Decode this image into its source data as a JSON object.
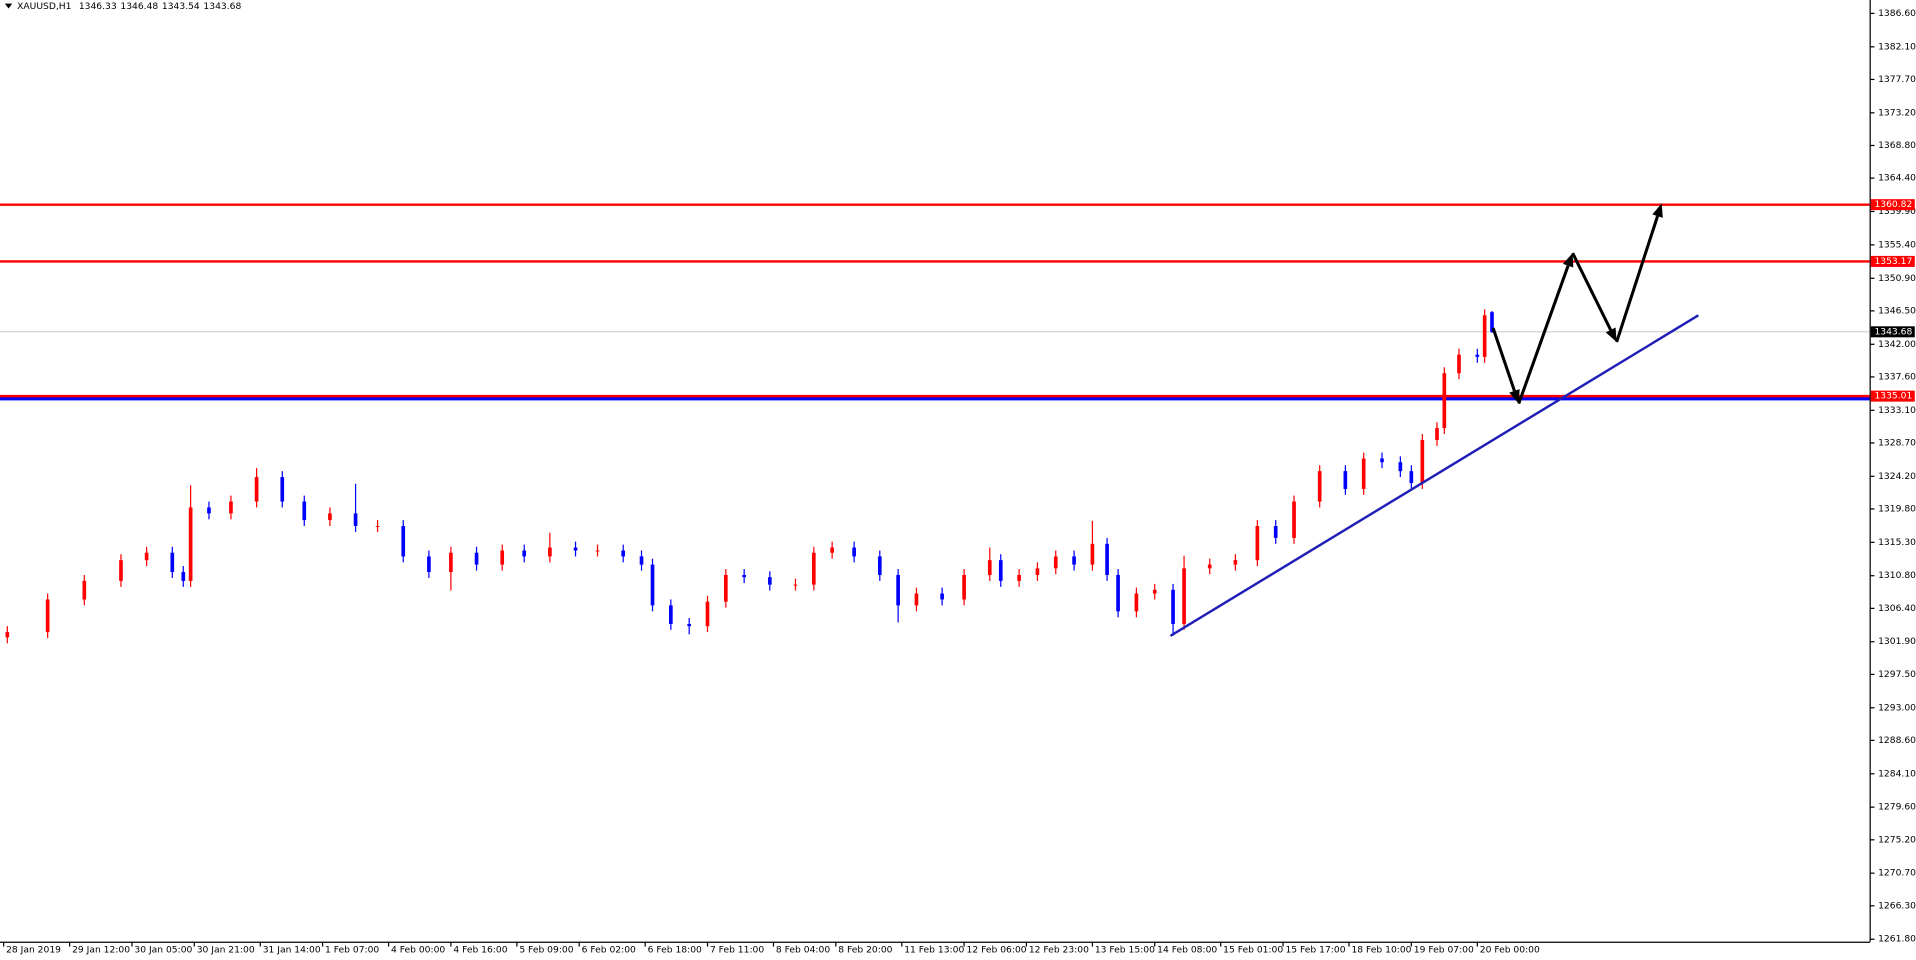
{
  "chart_data": {
    "type": "candlestick",
    "title": "XAUUSD,H1",
    "x": [
      2,
      13,
      23,
      33,
      40,
      47,
      50,
      52,
      57,
      63,
      70,
      77,
      83,
      90,
      97,
      103,
      110,
      117,
      123,
      130,
      137,
      143,
      150,
      157,
      163,
      170,
      175,
      178,
      183,
      188,
      193,
      198,
      203,
      210,
      217,
      222,
      227,
      233,
      240,
      245,
      250,
      257,
      263,
      270,
      273,
      278,
      283,
      288,
      293,
      298,
      302,
      305,
      310,
      315,
      320,
      323,
      330,
      337,
      343,
      348,
      353,
      360,
      367,
      372,
      377,
      382,
      385,
      388,
      392,
      394,
      398,
      403,
      405,
      407
    ],
    "open": [
      1302.5,
      1303.2,
      1307.6,
      1310.1,
      1312.9,
      1313.9,
      1311.3,
      1310.1,
      1320.0,
      1319.2,
      1320.8,
      1324.1,
      1320.8,
      1318.3,
      1319.2,
      1317.5,
      1317.5,
      1313.4,
      1311.3,
      1313.9,
      1312.3,
      1314.2,
      1313.4,
      1314.6,
      1314.2,
      1314.2,
      1313.4,
      1312.3,
      1306.8,
      1304.3,
      1304.0,
      1307.3,
      1310.9,
      1310.6,
      1309.6,
      1309.6,
      1313.9,
      1314.6,
      1313.4,
      1310.9,
      1306.8,
      1308.4,
      1307.6,
      1310.9,
      1312.9,
      1310.1,
      1310.9,
      1311.8,
      1313.4,
      1312.3,
      1315.1,
      1310.9,
      1306.0,
      1308.4,
      1308.9,
      1304.3,
      1311.8,
      1312.3,
      1312.9,
      1317.5,
      1315.9,
      1320.8,
      1324.9,
      1322.5,
      1326.6,
      1326.1,
      1324.9,
      1323.3,
      1329.1,
      1330.7,
      1338.1,
      1340.6,
      1340.3,
      1346.33
    ],
    "high": [
      1304.0,
      1308.4,
      1310.9,
      1313.7,
      1314.7,
      1314.7,
      1312.1,
      1323.0,
      1320.8,
      1321.6,
      1325.3,
      1324.9,
      1321.6,
      1320.0,
      1323.2,
      1318.3,
      1318.3,
      1314.2,
      1314.7,
      1314.7,
      1315.0,
      1315.0,
      1316.6,
      1315.4,
      1315.0,
      1315.0,
      1314.2,
      1313.1,
      1307.6,
      1305.1,
      1308.1,
      1311.7,
      1311.7,
      1311.4,
      1310.4,
      1314.7,
      1315.4,
      1315.4,
      1314.2,
      1311.7,
      1309.2,
      1309.2,
      1311.7,
      1314.6,
      1313.7,
      1311.7,
      1312.6,
      1314.2,
      1314.2,
      1318.2,
      1315.9,
      1311.7,
      1309.2,
      1309.7,
      1309.7,
      1313.5,
      1313.1,
      1313.7,
      1318.3,
      1318.3,
      1321.6,
      1325.7,
      1325.7,
      1327.4,
      1327.4,
      1326.9,
      1325.7,
      1329.9,
      1331.5,
      1338.9,
      1341.4,
      1341.4,
      1346.7,
      1346.48
    ],
    "low": [
      1301.7,
      1302.4,
      1306.8,
      1309.3,
      1312.1,
      1310.5,
      1309.3,
      1309.3,
      1318.4,
      1318.4,
      1320.0,
      1320.0,
      1317.5,
      1317.5,
      1316.7,
      1316.7,
      1312.6,
      1310.5,
      1308.8,
      1311.5,
      1311.5,
      1312.6,
      1312.6,
      1313.4,
      1313.4,
      1312.6,
      1311.5,
      1306.0,
      1303.5,
      1302.9,
      1303.2,
      1306.5,
      1309.8,
      1308.8,
      1308.8,
      1308.8,
      1313.1,
      1312.6,
      1310.1,
      1304.5,
      1306.0,
      1306.8,
      1306.8,
      1310.1,
      1309.3,
      1309.3,
      1310.1,
      1311.0,
      1311.5,
      1311.5,
      1310.1,
      1305.2,
      1305.2,
      1307.6,
      1302.7,
      1303.5,
      1311.0,
      1311.5,
      1312.1,
      1315.1,
      1315.1,
      1320.0,
      1321.7,
      1321.7,
      1325.3,
      1324.1,
      1322.5,
      1322.5,
      1328.3,
      1329.9,
      1337.3,
      1339.5,
      1339.5,
      1343.54
    ],
    "close": [
      1303.2,
      1307.6,
      1310.1,
      1312.9,
      1313.9,
      1311.3,
      1310.1,
      1320.0,
      1319.2,
      1320.8,
      1324.1,
      1320.8,
      1318.3,
      1319.2,
      1317.5,
      1317.5,
      1313.4,
      1311.3,
      1313.9,
      1312.3,
      1314.2,
      1313.4,
      1314.6,
      1314.2,
      1314.2,
      1313.4,
      1312.3,
      1306.8,
      1304.3,
      1304.0,
      1307.3,
      1310.9,
      1310.6,
      1309.6,
      1309.6,
      1313.9,
      1314.6,
      1313.4,
      1310.9,
      1306.8,
      1308.4,
      1307.6,
      1310.9,
      1312.9,
      1310.1,
      1310.9,
      1311.8,
      1313.4,
      1312.3,
      1315.1,
      1310.9,
      1306.0,
      1308.4,
      1308.9,
      1304.3,
      1311.8,
      1312.3,
      1312.9,
      1317.5,
      1315.9,
      1320.8,
      1324.9,
      1322.5,
      1326.6,
      1326.1,
      1324.9,
      1323.3,
      1329.1,
      1330.7,
      1338.1,
      1340.6,
      1340.3,
      1345.9,
      1343.68
    ],
    "up_color": "#ff0000",
    "down_color": "#0000ff",
    "price_line_color": "#c0c0c0",
    "xlim": [
      0,
      510
    ],
    "ylim": [
      1261.47,
      1388.41
    ],
    "xticks": [
      {
        "value": 1,
        "label": "28 Jan 2019"
      },
      {
        "value": 19,
        "label": "29 Jan 12:00"
      },
      {
        "value": 36,
        "label": "30 Jan 05:00"
      },
      {
        "value": 53,
        "label": "30 Jan 21:00"
      },
      {
        "value": 71,
        "label": "31 Jan 14:00"
      },
      {
        "value": 88,
        "label": "1 Feb 07:00"
      },
      {
        "value": 106,
        "label": "4 Feb 00:00"
      },
      {
        "value": 123,
        "label": "4 Feb 16:00"
      },
      {
        "value": 141,
        "label": "5 Feb 09:00"
      },
      {
        "value": 158,
        "label": "6 Feb 02:00"
      },
      {
        "value": 176,
        "label": "6 Feb 18:00"
      },
      {
        "value": 193,
        "label": "7 Feb 11:00"
      },
      {
        "value": 211,
        "label": "8 Feb 04:00"
      },
      {
        "value": 228,
        "label": "8 Feb 20:00"
      },
      {
        "value": 246,
        "label": "11 Feb 13:00"
      },
      {
        "value": 263,
        "label": "12 Feb 06:00"
      },
      {
        "value": 280,
        "label": "12 Feb 23:00"
      },
      {
        "value": 298,
        "label": "13 Feb 15:00"
      },
      {
        "value": 315,
        "label": "14 Feb 08:00"
      },
      {
        "value": 333,
        "label": "15 Feb 01:00"
      },
      {
        "value": 350,
        "label": "15 Feb 17:00"
      },
      {
        "value": 368,
        "label": "18 Feb 10:00"
      },
      {
        "value": 385,
        "label": "19 Feb 07:00"
      },
      {
        "value": 403,
        "label": "20 Feb 00:00"
      }
    ],
    "yticks": [
      {
        "value": 1386.6,
        "label": "1386.60"
      },
      {
        "value": 1382.1,
        "label": "1382.10"
      },
      {
        "value": 1377.7,
        "label": "1377.70"
      },
      {
        "value": 1373.2,
        "label": "1373.20"
      },
      {
        "value": 1368.8,
        "label": "1368.80"
      },
      {
        "value": 1364.4,
        "label": "1364.40"
      },
      {
        "value": 1359.9,
        "label": "1359.90"
      },
      {
        "value": 1355.4,
        "label": "1355.40"
      },
      {
        "value": 1350.9,
        "label": "1350.90"
      },
      {
        "value": 1346.5,
        "label": "1346.50"
      },
      {
        "value": 1342.0,
        "label": "1342.00"
      },
      {
        "value": 1337.6,
        "label": "1337.60"
      },
      {
        "value": 1333.1,
        "label": "1333.10"
      },
      {
        "value": 1328.7,
        "label": "1328.70"
      },
      {
        "value": 1324.2,
        "label": "1324.20"
      },
      {
        "value": 1319.8,
        "label": "1319.80"
      },
      {
        "value": 1315.3,
        "label": "1315.30"
      },
      {
        "value": 1310.8,
        "label": "1310.80"
      },
      {
        "value": 1306.4,
        "label": "1306.40"
      },
      {
        "value": 1301.9,
        "label": "1301.90"
      },
      {
        "value": 1297.5,
        "label": "1297.50"
      },
      {
        "value": 1293.0,
        "label": "1293.00"
      },
      {
        "value": 1288.6,
        "label": "1288.60"
      },
      {
        "value": 1284.1,
        "label": "1284.10"
      },
      {
        "value": 1279.6,
        "label": "1279.60"
      },
      {
        "value": 1275.2,
        "label": "1275.20"
      },
      {
        "value": 1270.7,
        "label": "1270.70"
      },
      {
        "value": 1266.3,
        "label": "1266.30"
      },
      {
        "value": 1261.8,
        "label": "1261.80"
      }
    ],
    "levels": [
      {
        "value": 1360.82,
        "color": "#ff0000"
      },
      {
        "value": 1353.17,
        "color": "#ff0000"
      },
      {
        "value": 1335.01,
        "color": "#ff0000"
      }
    ],
    "support_color": "#0000ff",
    "trendline": {
      "x": [
        319.3,
        463.3
      ],
      "y": [
        1302.7,
        1345.9
      ],
      "color": "#1f1fb8"
    },
    "forecast_path": {
      "x": [
        407.3,
        414.3,
        429,
        441,
        453.3
      ],
      "y": [
        1344.2,
        1334.0,
        1354.3,
        1342.3,
        1361.0
      ],
      "color": "#000000"
    }
  }
}
